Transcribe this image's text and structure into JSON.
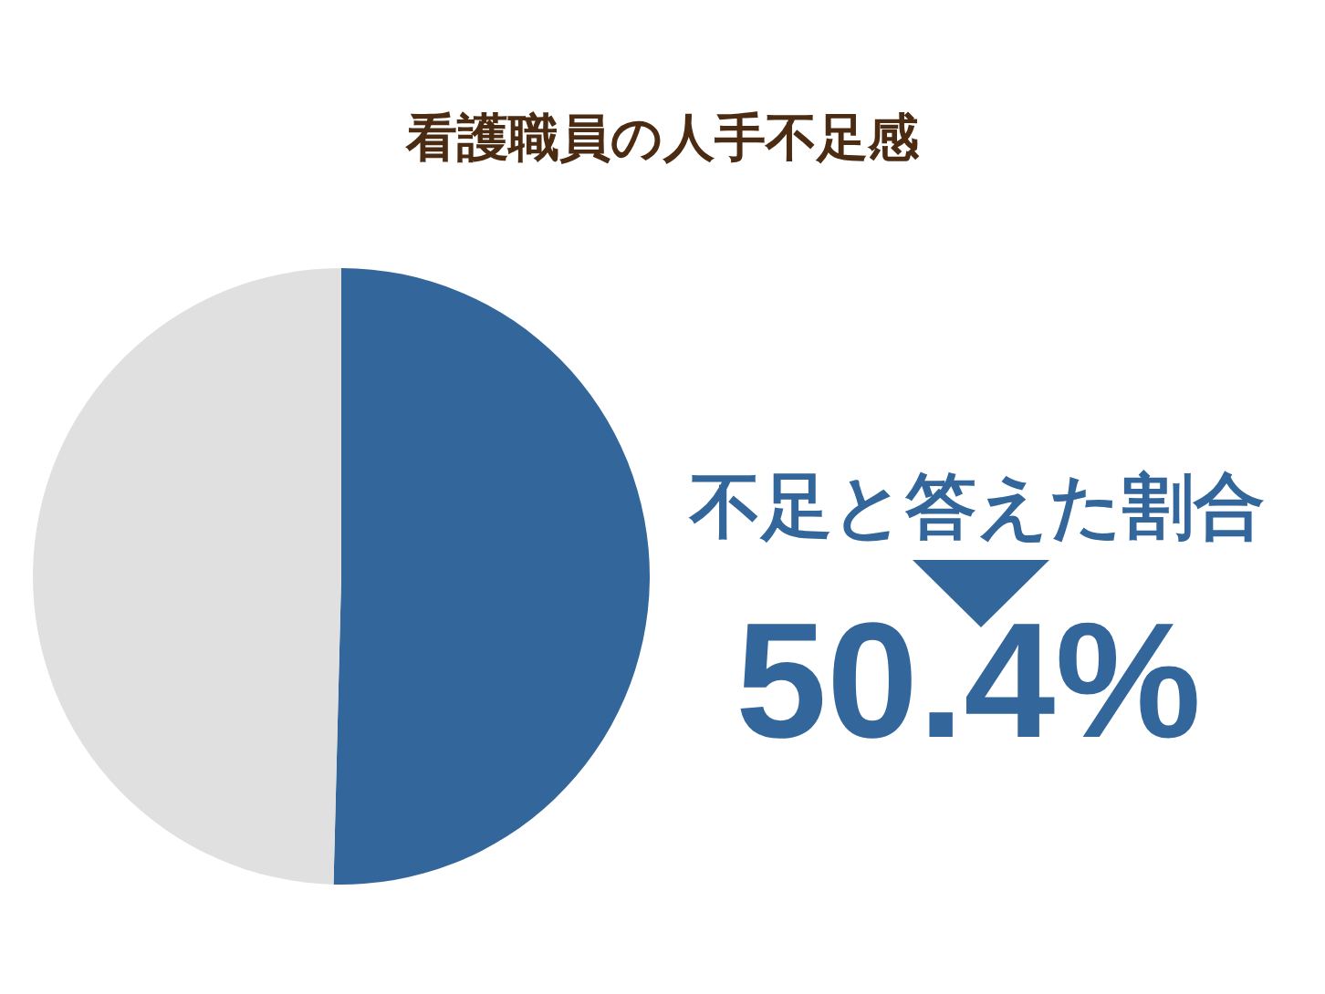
{
  "chart_data": {
    "type": "pie",
    "title": "看護職員の人手不足感",
    "categories": [
      "不足と答えた割合",
      null
    ],
    "values": [
      50.4,
      49.6
    ],
    "colors": [
      "#33669a",
      "#e0e0e0"
    ],
    "value_labels": [
      "50.4%",
      null
    ],
    "legend": false
  }
}
